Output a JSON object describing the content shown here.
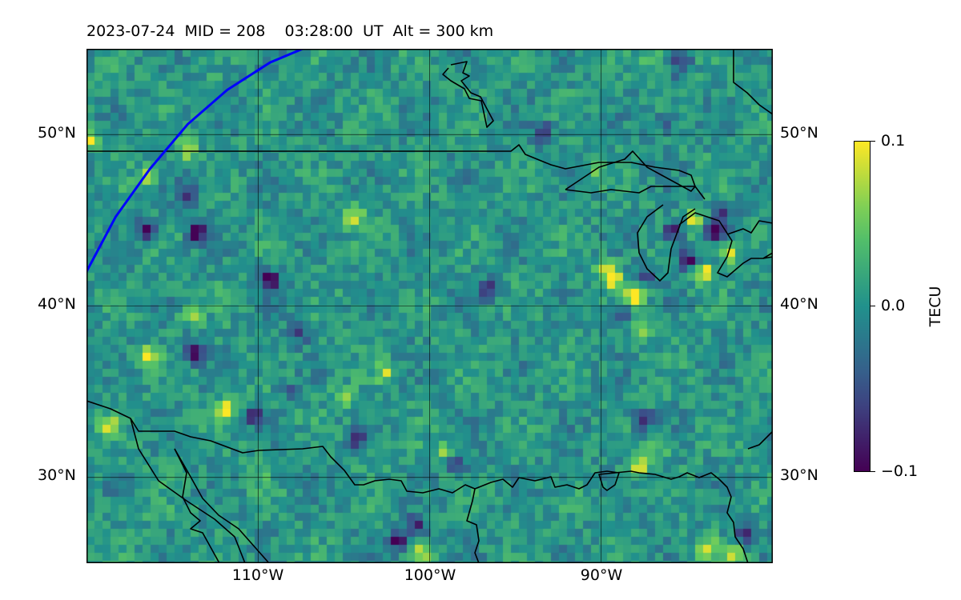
{
  "title": "2023-07-24  MID = 208    03:28:00  UT  Alt = 300 km",
  "map": {
    "lon_range": [
      -120,
      -80
    ],
    "lat_range": [
      25,
      55
    ],
    "lat_ticks": [
      {
        "value": 50,
        "label": "50°N"
      },
      {
        "value": 40,
        "label": "40°N"
      },
      {
        "value": 30,
        "label": "30°N"
      }
    ],
    "lon_ticks": [
      {
        "value": -110,
        "label": "110°W"
      },
      {
        "value": -100,
        "label": "100°W"
      },
      {
        "value": -90,
        "label": "90°W"
      }
    ],
    "gridlines": true,
    "coastlines": true,
    "track_color": "#0000ff"
  },
  "colorbar": {
    "label": "TECU",
    "colormap": "viridis",
    "ticks": [
      {
        "value": 0.1,
        "label": "0.1"
      },
      {
        "value": 0.0,
        "label": "0.0"
      },
      {
        "value": -0.1,
        "label": "−0.1"
      }
    ],
    "range": [
      -0.1,
      0.1
    ]
  },
  "chart_data": {
    "type": "heatmap",
    "quantity": "TECU",
    "vmin": -0.1,
    "vmax": 0.1,
    "satellite_track": [
      [
        -120,
        42
      ],
      [
        -118.3,
        45.2
      ],
      [
        -116.3,
        48.0
      ],
      [
        -114.1,
        50.6
      ],
      [
        -111.8,
        52.6
      ],
      [
        -109.3,
        54.2
      ],
      [
        -107.4,
        55
      ]
    ],
    "hotspots": [
      {
        "lon": -119.8,
        "lat": 49.7,
        "value": 0.1
      },
      {
        "lon": -116.4,
        "lat": 47.6,
        "value": 0.09
      },
      {
        "lon": -114.1,
        "lat": 49.1,
        "value": 0.08
      },
      {
        "lon": -116.5,
        "lat": 44.5,
        "value": -0.1
      },
      {
        "lon": -113.6,
        "lat": 44.3,
        "value": -0.1
      },
      {
        "lon": -114.1,
        "lat": 46.5,
        "value": -0.09
      },
      {
        "lon": -109.3,
        "lat": 41.5,
        "value": -0.1
      },
      {
        "lon": -104.5,
        "lat": 45.2,
        "value": 0.09
      },
      {
        "lon": -114.0,
        "lat": 39.5,
        "value": 0.06
      },
      {
        "lon": -116.5,
        "lat": 37.0,
        "value": 0.09
      },
      {
        "lon": -113.8,
        "lat": 37.3,
        "value": -0.09
      },
      {
        "lon": -111.9,
        "lat": 33.9,
        "value": 0.09
      },
      {
        "lon": -110.2,
        "lat": 33.6,
        "value": -0.08
      },
      {
        "lon": -118.6,
        "lat": 32.9,
        "value": 0.07
      },
      {
        "lon": -105.0,
        "lat": 34.7,
        "value": 0.08
      },
      {
        "lon": -102.5,
        "lat": 36.1,
        "value": 0.06
      },
      {
        "lon": -99.1,
        "lat": 31.5,
        "value": 0.07
      },
      {
        "lon": -98.5,
        "lat": 30.8,
        "value": -0.08
      },
      {
        "lon": -101.9,
        "lat": 26.3,
        "value": -0.1
      },
      {
        "lon": -100.8,
        "lat": 27.2,
        "value": -0.09
      },
      {
        "lon": -100.5,
        "lat": 25.5,
        "value": 0.06
      },
      {
        "lon": -96.6,
        "lat": 41.0,
        "value": -0.06
      },
      {
        "lon": -89.3,
        "lat": 41.5,
        "value": 0.09
      },
      {
        "lon": -88.1,
        "lat": 40.6,
        "value": 0.1
      },
      {
        "lon": -89.7,
        "lat": 42.2,
        "value": 0.08
      },
      {
        "lon": -87.3,
        "lat": 41.8,
        "value": -0.07
      },
      {
        "lon": -88.8,
        "lat": 39.5,
        "value": -0.08
      },
      {
        "lon": -87.6,
        "lat": 38.5,
        "value": 0.07
      },
      {
        "lon": -85.8,
        "lat": 44.4,
        "value": -0.1
      },
      {
        "lon": -84.5,
        "lat": 45.0,
        "value": 0.09
      },
      {
        "lon": -83.5,
        "lat": 44.4,
        "value": -0.09
      },
      {
        "lon": -84.9,
        "lat": 42.7,
        "value": -0.1
      },
      {
        "lon": -84.0,
        "lat": 42.0,
        "value": 0.09
      },
      {
        "lon": -82.5,
        "lat": 43.0,
        "value": 0.08
      },
      {
        "lon": -82.8,
        "lat": 45.4,
        "value": -0.06
      },
      {
        "lon": -90.3,
        "lat": 47.9,
        "value": 0.05
      },
      {
        "lon": -87.6,
        "lat": 33.4,
        "value": -0.07
      },
      {
        "lon": -86.5,
        "lat": 32.0,
        "value": 0.06
      },
      {
        "lon": -87.8,
        "lat": 30.6,
        "value": 0.08
      },
      {
        "lon": -83.9,
        "lat": 25.8,
        "value": 0.09
      },
      {
        "lon": -82.3,
        "lat": 25.5,
        "value": 0.1
      },
      {
        "lon": -81.7,
        "lat": 26.8,
        "value": -0.08
      },
      {
        "lon": -93.4,
        "lat": 50.1,
        "value": -0.07
      },
      {
        "lon": -86.1,
        "lat": 50.8,
        "value": -0.06
      },
      {
        "lon": -85.3,
        "lat": 54.0,
        "value": -0.06
      },
      {
        "lon": -87.0,
        "lat": 54.4,
        "value": 0.05
      },
      {
        "lon": -104.1,
        "lat": 32.2,
        "value": -0.06
      },
      {
        "lon": -108.0,
        "lat": 35.0,
        "value": -0.05
      },
      {
        "lon": -107.5,
        "lat": 38.4,
        "value": -0.06
      },
      {
        "lon": -110.0,
        "lat": 30.0,
        "value": 0.03
      },
      {
        "lon": -116.0,
        "lat": 28.0,
        "value": 0.03
      }
    ]
  }
}
